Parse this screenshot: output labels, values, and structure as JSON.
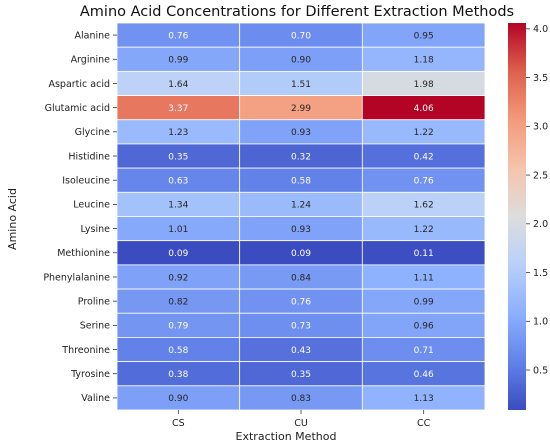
{
  "chart_data": {
    "type": "heatmap",
    "title": "Amino Acid Concentrations for Different Extraction Methods",
    "xlabel": "Extraction Method",
    "ylabel": "Amino Acid",
    "x_categories": [
      "CS",
      "CU",
      "CC"
    ],
    "y_categories": [
      "Alanine",
      "Arginine",
      "Aspartic acid",
      "Glutamic acid",
      "Glycine",
      "Histidine",
      "Isoleucine",
      "Leucine",
      "Lysine",
      "Methionine",
      "Phenylalanine",
      "Proline",
      "Serine",
      "Threonine",
      "Tyrosine",
      "Valine"
    ],
    "values": [
      [
        0.76,
        0.7,
        0.95
      ],
      [
        0.99,
        0.9,
        1.18
      ],
      [
        1.64,
        1.51,
        1.98
      ],
      [
        3.37,
        2.99,
        4.06
      ],
      [
        1.23,
        0.93,
        1.22
      ],
      [
        0.35,
        0.32,
        0.42
      ],
      [
        0.63,
        0.58,
        0.76
      ],
      [
        1.34,
        1.24,
        1.62
      ],
      [
        1.01,
        0.93,
        1.22
      ],
      [
        0.09,
        0.09,
        0.11
      ],
      [
        0.92,
        0.84,
        1.11
      ],
      [
        0.82,
        0.76,
        0.99
      ],
      [
        0.79,
        0.73,
        0.96
      ],
      [
        0.58,
        0.43,
        0.71
      ],
      [
        0.38,
        0.35,
        0.46
      ],
      [
        0.9,
        0.83,
        1.13
      ]
    ],
    "cell_labels": [
      [
        "0.76",
        "0.70",
        "0.95"
      ],
      [
        "0.99",
        "0.90",
        "1.18"
      ],
      [
        "1.64",
        "1.51",
        "1.98"
      ],
      [
        "3.37",
        "2.99",
        "4.06"
      ],
      [
        "1.23",
        "0.93",
        "1.22"
      ],
      [
        "0.35",
        "0.32",
        "0.42"
      ],
      [
        "0.63",
        "0.58",
        "0.76"
      ],
      [
        "1.34",
        "1.24",
        "1.62"
      ],
      [
        "1.01",
        "0.93",
        "1.22"
      ],
      [
        "0.09",
        "0.09",
        "0.11"
      ],
      [
        "0.92",
        "0.84",
        "1.11"
      ],
      [
        "0.82",
        "0.76",
        "0.99"
      ],
      [
        "0.79",
        "0.73",
        "0.96"
      ],
      [
        "0.58",
        "0.43",
        "0.71"
      ],
      [
        "0.38",
        "0.35",
        "0.46"
      ],
      [
        "0.90",
        "0.83",
        "1.13"
      ]
    ],
    "colormap": "coolwarm",
    "color_range": [
      0.09,
      4.06
    ],
    "colorbar_ticks": [
      0.5,
      1.0,
      1.5,
      2.0,
      2.5,
      3.0,
      3.5,
      4.0
    ],
    "colorbar_tick_labels": [
      "0.5",
      "1.0",
      "1.5",
      "2.0",
      "2.5",
      "3.0",
      "3.5",
      "4.0"
    ],
    "grid": true,
    "legend": "colorbar-right"
  }
}
